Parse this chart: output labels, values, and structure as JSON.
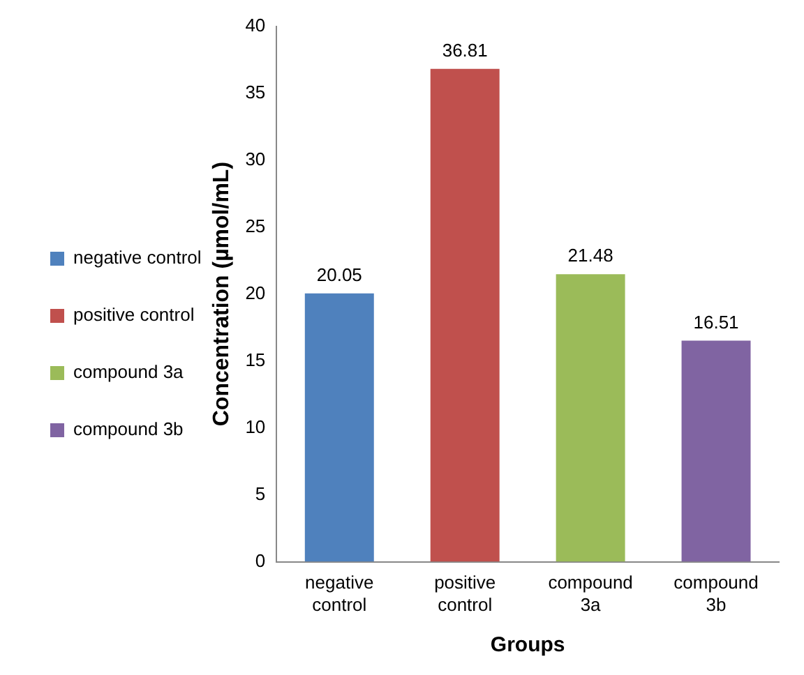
{
  "chart_data": {
    "type": "bar",
    "xlabel": "Groups",
    "ylabel": "Concentration (µmol/mL)",
    "categories": [
      "negative control",
      "positive control",
      "compound 3a",
      "compound 3b"
    ],
    "series": [
      {
        "name": "negative control",
        "color": "#4f81bd",
        "values": [
          20.05,
          null,
          null,
          null
        ]
      },
      {
        "name": "positive control",
        "color": "#c0504d",
        "values": [
          null,
          36.81,
          null,
          null
        ]
      },
      {
        "name": "compound 3a",
        "color": "#9bbb59",
        "values": [
          null,
          null,
          21.48,
          null
        ]
      },
      {
        "name": "compound 3b",
        "color": "#8064a2",
        "values": [
          null,
          null,
          null,
          16.51
        ]
      }
    ],
    "ylim": [
      0,
      40
    ],
    "yticks": [
      0,
      5,
      10,
      15,
      20,
      25,
      30,
      35,
      40
    ],
    "grid": false,
    "legend": "left",
    "data_labels": true
  }
}
